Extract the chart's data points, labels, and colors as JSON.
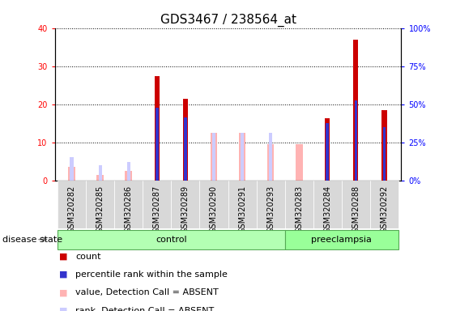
{
  "title": "GDS3467 / 238564_at",
  "samples": [
    "GSM320282",
    "GSM320285",
    "GSM320286",
    "GSM320287",
    "GSM320289",
    "GSM320290",
    "GSM320291",
    "GSM320293",
    "GSM320283",
    "GSM320284",
    "GSM320288",
    "GSM320292"
  ],
  "count": [
    0,
    0,
    0,
    27.3,
    21.5,
    0,
    0,
    0,
    0,
    16.3,
    37.0,
    18.5
  ],
  "percentile_rank": [
    0,
    0,
    0,
    19.0,
    16.5,
    0,
    0,
    0,
    0,
    15.0,
    21.0,
    14.0
  ],
  "value_absent": [
    3.5,
    1.5,
    2.5,
    0,
    0,
    12.5,
    12.5,
    9.5,
    9.5,
    0,
    0,
    0
  ],
  "rank_absent": [
    6.0,
    4.0,
    4.8,
    0,
    0,
    12.5,
    12.5,
    12.5,
    0,
    0,
    0,
    0
  ],
  "ylim_left": [
    0,
    40
  ],
  "ylim_right": [
    0,
    100
  ],
  "yticks_left": [
    0,
    10,
    20,
    30,
    40
  ],
  "yticks_right": [
    0,
    25,
    50,
    75,
    100
  ],
  "color_count": "#cc0000",
  "color_percentile": "#3333cc",
  "color_value_absent": "#ffb3b3",
  "color_rank_absent": "#ccccff",
  "bg_control": "#b3ffb3",
  "bg_preeclampsia": "#99ff99",
  "label_count": "count",
  "label_percentile": "percentile rank within the sample",
  "label_value_absent": "value, Detection Call = ABSENT",
  "label_rank_absent": "rank, Detection Call = ABSENT",
  "disease_state_label": "disease state",
  "control_label": "control",
  "preeclampsia_label": "preeclampsia",
  "fontsize_title": 11,
  "fontsize_axis": 7,
  "fontsize_legend": 8,
  "fontsize_label": 8,
  "n_control": 8,
  "n_preeclampsia": 4
}
